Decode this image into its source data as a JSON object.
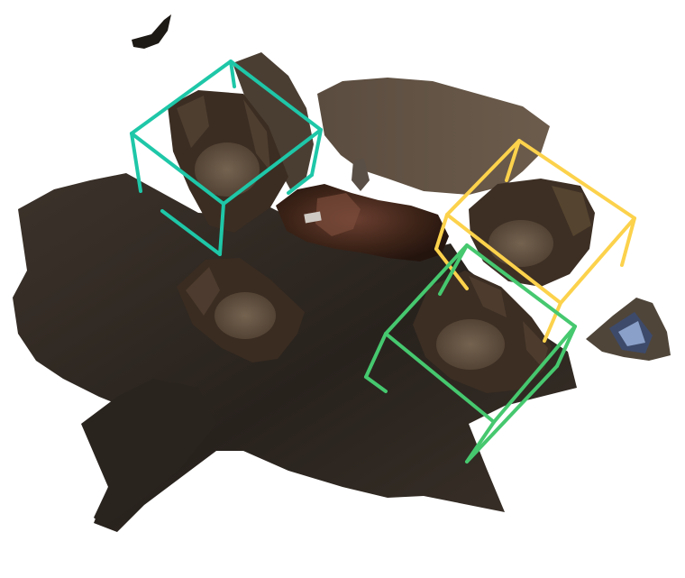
{
  "scene": {
    "description_colors": {
      "background": "#ffffff",
      "floor_dark": "#2b2520",
      "floor_mid": "#3b322a",
      "wall_brown": "#5e5143",
      "chair_dark": "#3e3024",
      "chair_seat": "#6b5a48",
      "table_wood": "#3a2218",
      "table_highlight": "#6a4032"
    },
    "bounding_boxes": [
      {
        "label": "chair",
        "color": "#1ec7a8"
      },
      {
        "label": "chair",
        "color": "#fcd24c"
      },
      {
        "label": "chair",
        "color": "#46c86f"
      }
    ]
  }
}
